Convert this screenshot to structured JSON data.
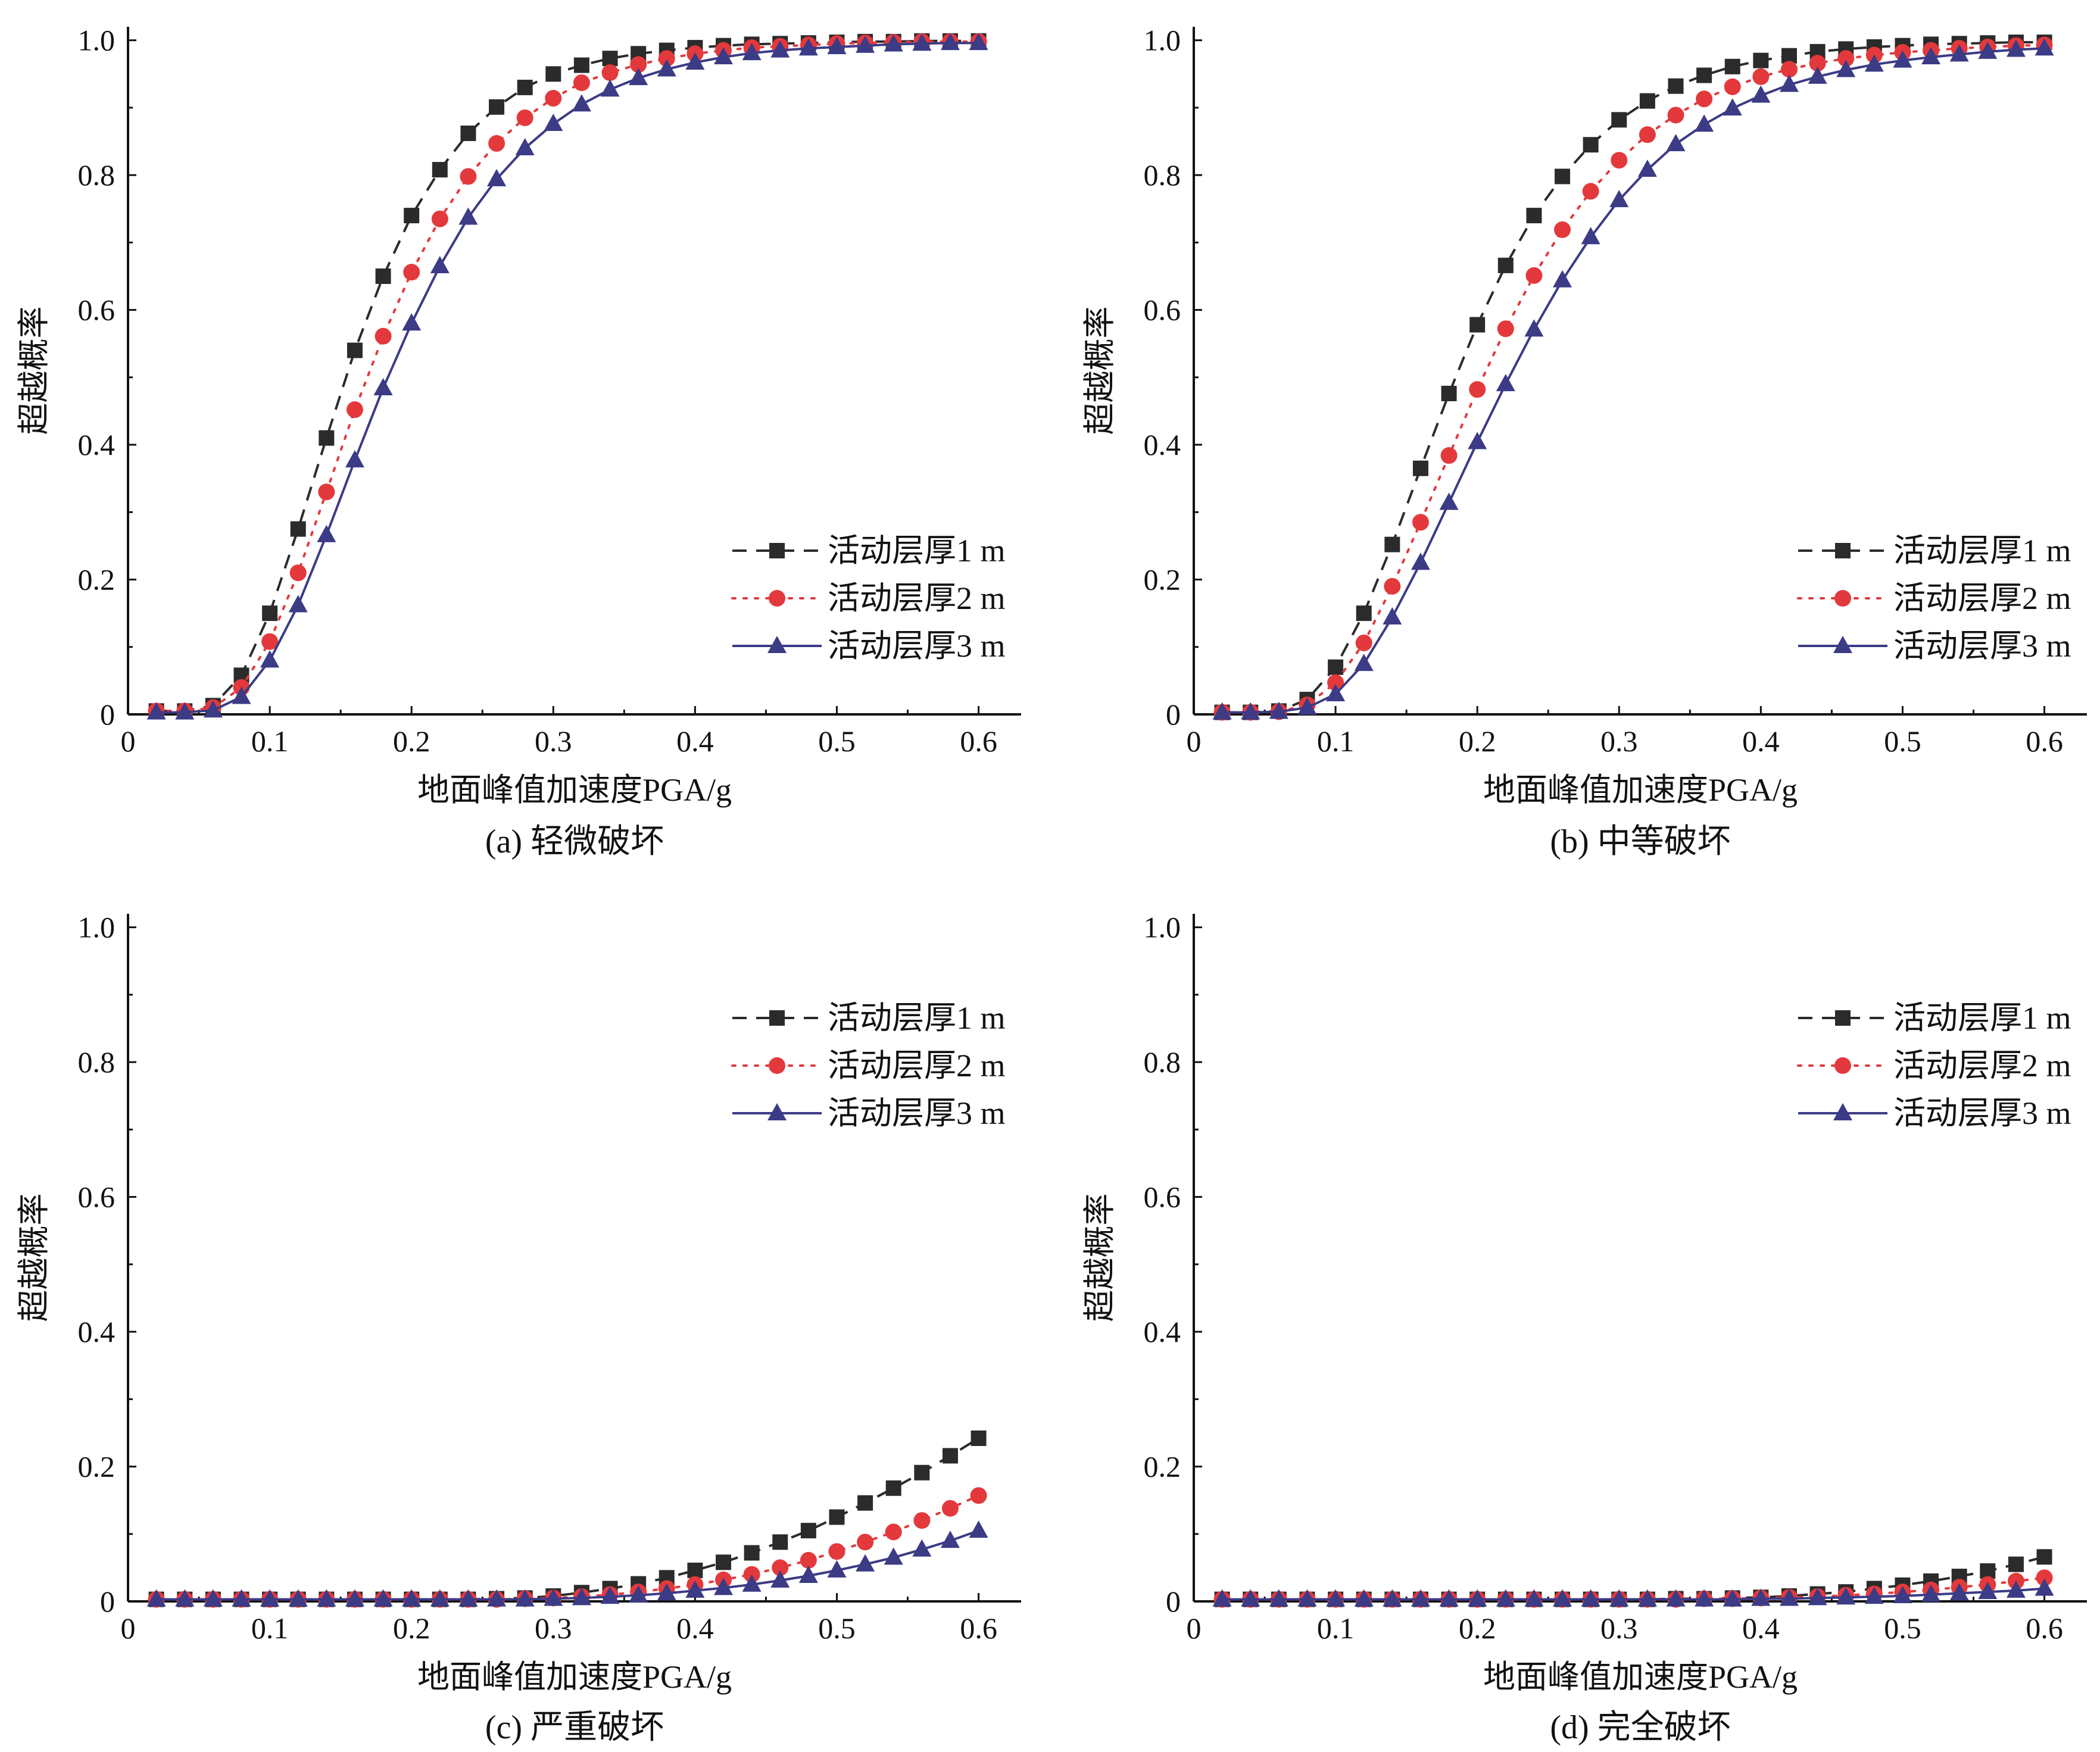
{
  "figure": {
    "colors": {
      "axis": "#111111",
      "series1": "#2b2b2b",
      "series2": "#e3393c",
      "series3": "#3b3b86"
    }
  },
  "chart_data": [
    {
      "type": "line",
      "caption": "(a) 轻微破坏",
      "xlabel": "地面峰值加速度PGA/g",
      "ylabel": "超越概率",
      "xlim": [
        0,
        0.63
      ],
      "ylim": [
        0,
        1.02
      ],
      "xticks": [
        "0",
        "0.1",
        "0.2",
        "0.3",
        "0.4",
        "0.5",
        "0.6"
      ],
      "yticks": [
        "0",
        "0.2",
        "0.4",
        "0.6",
        "0.8",
        "1.0"
      ],
      "grid": false,
      "legend": "right-middle",
      "x": [
        0.02,
        0.04,
        0.06,
        0.08,
        0.1,
        0.12,
        0.14,
        0.16,
        0.18,
        0.2,
        0.22,
        0.24,
        0.26,
        0.28,
        0.3,
        0.32,
        0.34,
        0.36,
        0.38,
        0.4,
        0.42,
        0.44,
        0.46,
        0.48,
        0.5,
        0.52,
        0.54,
        0.56,
        0.58,
        0.6
      ],
      "series": [
        {
          "name": "活动层厚1 m",
          "marker": "square",
          "line": "dashed",
          "color": "#2b2b2b",
          "values": [
            0.005,
            0.005,
            0.013,
            0.058,
            0.15,
            0.275,
            0.41,
            0.54,
            0.65,
            0.74,
            0.808,
            0.862,
            0.901,
            0.93,
            0.95,
            0.963,
            0.973,
            0.98,
            0.985,
            0.989,
            0.992,
            0.994,
            0.995,
            0.996,
            0.997,
            0.998,
            0.998,
            0.999,
            0.999,
            0.999
          ]
        },
        {
          "name": "活动层厚2 m",
          "marker": "circle",
          "line": "dotted",
          "color": "#e3393c",
          "values": [
            0.005,
            0.005,
            0.01,
            0.04,
            0.108,
            0.21,
            0.33,
            0.452,
            0.561,
            0.656,
            0.735,
            0.798,
            0.847,
            0.885,
            0.914,
            0.937,
            0.952,
            0.964,
            0.973,
            0.98,
            0.985,
            0.989,
            0.991,
            0.993,
            0.995,
            0.996,
            0.997,
            0.998,
            0.998,
            0.998
          ]
        },
        {
          "name": "活动层厚3 m",
          "marker": "triangle",
          "line": "solid",
          "color": "#3b3b86",
          "values": [
            0.003,
            0.003,
            0.006,
            0.026,
            0.08,
            0.162,
            0.266,
            0.377,
            0.484,
            0.58,
            0.665,
            0.737,
            0.794,
            0.84,
            0.876,
            0.905,
            0.927,
            0.944,
            0.957,
            0.967,
            0.975,
            0.981,
            0.985,
            0.988,
            0.99,
            0.992,
            0.994,
            0.995,
            0.996,
            0.996
          ]
        }
      ]
    },
    {
      "type": "line",
      "caption": "(b) 中等破坏",
      "xlabel": "地面峰值加速度PGA/g",
      "ylabel": "超越概率",
      "xlim": [
        0,
        0.63
      ],
      "ylim": [
        0,
        1.02
      ],
      "xticks": [
        "0",
        "0.1",
        "0.2",
        "0.3",
        "0.4",
        "0.5",
        "0.6"
      ],
      "yticks": [
        "0",
        "0.2",
        "0.4",
        "0.6",
        "0.8",
        "1.0"
      ],
      "grid": false,
      "legend": "right-middle",
      "x": [
        0.02,
        0.04,
        0.06,
        0.08,
        0.1,
        0.12,
        0.14,
        0.16,
        0.18,
        0.2,
        0.22,
        0.24,
        0.26,
        0.28,
        0.3,
        0.32,
        0.34,
        0.36,
        0.38,
        0.4,
        0.42,
        0.44,
        0.46,
        0.48,
        0.5,
        0.52,
        0.54,
        0.56,
        0.58,
        0.6
      ],
      "series": [
        {
          "name": "活动层厚1 m",
          "marker": "square",
          "line": "dashed",
          "color": "#2b2b2b",
          "values": [
            0.003,
            0.003,
            0.005,
            0.022,
            0.07,
            0.15,
            0.252,
            0.365,
            0.476,
            0.578,
            0.666,
            0.74,
            0.798,
            0.845,
            0.882,
            0.91,
            0.932,
            0.948,
            0.961,
            0.97,
            0.977,
            0.983,
            0.987,
            0.99,
            0.992,
            0.994,
            0.995,
            0.996,
            0.997,
            0.997
          ]
        },
        {
          "name": "活动层厚2 m",
          "marker": "circle",
          "line": "dotted",
          "color": "#e3393c",
          "values": [
            0.003,
            0.003,
            0.004,
            0.014,
            0.047,
            0.106,
            0.19,
            0.285,
            0.384,
            0.482,
            0.572,
            0.651,
            0.719,
            0.776,
            0.822,
            0.86,
            0.889,
            0.913,
            0.931,
            0.946,
            0.957,
            0.966,
            0.973,
            0.978,
            0.982,
            0.985,
            0.988,
            0.99,
            0.992,
            0.993
          ]
        },
        {
          "name": "活动层厚3 m",
          "marker": "triangle",
          "line": "solid",
          "color": "#3b3b86",
          "values": [
            0.003,
            0.003,
            0.004,
            0.01,
            0.03,
            0.075,
            0.144,
            0.225,
            0.314,
            0.404,
            0.49,
            0.571,
            0.644,
            0.708,
            0.763,
            0.808,
            0.846,
            0.875,
            0.899,
            0.918,
            0.934,
            0.946,
            0.956,
            0.964,
            0.97,
            0.975,
            0.979,
            0.983,
            0.986,
            0.988
          ]
        }
      ]
    },
    {
      "type": "line",
      "caption": "(c) 严重破坏",
      "xlabel": "地面峰值加速度PGA/g",
      "ylabel": "超越概率",
      "xlim": [
        0,
        0.63
      ],
      "ylim": [
        0,
        1.02
      ],
      "xticks": [
        "0",
        "0.1",
        "0.2",
        "0.3",
        "0.4",
        "0.5",
        "0.6"
      ],
      "yticks": [
        "0",
        "0.2",
        "0.4",
        "0.6",
        "0.8",
        "1.0"
      ],
      "grid": false,
      "legend": "top-right",
      "x": [
        0.02,
        0.04,
        0.06,
        0.08,
        0.1,
        0.12,
        0.14,
        0.16,
        0.18,
        0.2,
        0.22,
        0.24,
        0.26,
        0.28,
        0.3,
        0.32,
        0.34,
        0.36,
        0.38,
        0.4,
        0.42,
        0.44,
        0.46,
        0.48,
        0.5,
        0.52,
        0.54,
        0.56,
        0.58,
        0.6
      ],
      "series": [
        {
          "name": "活动层厚1 m",
          "marker": "square",
          "line": "dashed",
          "color": "#2b2b2b",
          "values": [
            0.003,
            0.003,
            0.003,
            0.003,
            0.003,
            0.003,
            0.003,
            0.003,
            0.003,
            0.003,
            0.003,
            0.003,
            0.004,
            0.005,
            0.008,
            0.013,
            0.019,
            0.026,
            0.035,
            0.046,
            0.058,
            0.072,
            0.088,
            0.105,
            0.125,
            0.146,
            0.168,
            0.191,
            0.216,
            0.242
          ]
        },
        {
          "name": "活动层厚2 m",
          "marker": "circle",
          "line": "dotted",
          "color": "#e3393c",
          "values": [
            0.003,
            0.003,
            0.003,
            0.003,
            0.003,
            0.003,
            0.003,
            0.003,
            0.003,
            0.003,
            0.003,
            0.003,
            0.003,
            0.004,
            0.005,
            0.007,
            0.01,
            0.014,
            0.019,
            0.025,
            0.032,
            0.04,
            0.05,
            0.061,
            0.074,
            0.088,
            0.103,
            0.12,
            0.138,
            0.157
          ]
        },
        {
          "name": "活动层厚3 m",
          "marker": "triangle",
          "line": "solid",
          "color": "#3b3b86",
          "values": [
            0.003,
            0.003,
            0.003,
            0.003,
            0.003,
            0.003,
            0.003,
            0.003,
            0.003,
            0.003,
            0.003,
            0.003,
            0.003,
            0.003,
            0.004,
            0.005,
            0.007,
            0.009,
            0.012,
            0.016,
            0.02,
            0.025,
            0.031,
            0.038,
            0.046,
            0.055,
            0.065,
            0.077,
            0.09,
            0.105
          ]
        }
      ]
    },
    {
      "type": "line",
      "caption": "(d) 完全破坏",
      "xlabel": "地面峰值加速度PGA/g",
      "ylabel": "超越概率",
      "xlim": [
        0,
        0.63
      ],
      "ylim": [
        0,
        1.02
      ],
      "xticks": [
        "0",
        "0.1",
        "0.2",
        "0.3",
        "0.4",
        "0.5",
        "0.6"
      ],
      "yticks": [
        "0",
        "0.2",
        "0.4",
        "0.6",
        "0.8",
        "1.0"
      ],
      "grid": false,
      "legend": "top-right",
      "x": [
        0.02,
        0.04,
        0.06,
        0.08,
        0.1,
        0.12,
        0.14,
        0.16,
        0.18,
        0.2,
        0.22,
        0.24,
        0.26,
        0.28,
        0.3,
        0.32,
        0.34,
        0.36,
        0.38,
        0.4,
        0.42,
        0.44,
        0.46,
        0.48,
        0.5,
        0.52,
        0.54,
        0.56,
        0.58,
        0.6
      ],
      "series": [
        {
          "name": "活动层厚1 m",
          "marker": "square",
          "line": "dashed",
          "color": "#2b2b2b",
          "values": [
            0.003,
            0.003,
            0.003,
            0.003,
            0.003,
            0.003,
            0.003,
            0.003,
            0.003,
            0.003,
            0.003,
            0.003,
            0.003,
            0.003,
            0.003,
            0.003,
            0.004,
            0.004,
            0.005,
            0.006,
            0.008,
            0.011,
            0.014,
            0.019,
            0.024,
            0.03,
            0.037,
            0.045,
            0.055,
            0.066
          ]
        },
        {
          "name": "活动层厚2 m",
          "marker": "circle",
          "line": "dotted",
          "color": "#e3393c",
          "values": [
            0.003,
            0.003,
            0.003,
            0.003,
            0.003,
            0.003,
            0.003,
            0.003,
            0.003,
            0.003,
            0.003,
            0.003,
            0.003,
            0.003,
            0.003,
            0.003,
            0.003,
            0.004,
            0.004,
            0.005,
            0.006,
            0.007,
            0.009,
            0.011,
            0.014,
            0.017,
            0.021,
            0.025,
            0.03,
            0.035
          ]
        },
        {
          "name": "活动层厚3 m",
          "marker": "triangle",
          "line": "solid",
          "color": "#3b3b86",
          "values": [
            0.003,
            0.003,
            0.003,
            0.003,
            0.003,
            0.003,
            0.003,
            0.003,
            0.003,
            0.003,
            0.003,
            0.003,
            0.003,
            0.003,
            0.003,
            0.003,
            0.003,
            0.003,
            0.003,
            0.004,
            0.004,
            0.005,
            0.006,
            0.007,
            0.008,
            0.01,
            0.012,
            0.014,
            0.016,
            0.019
          ]
        }
      ]
    }
  ]
}
